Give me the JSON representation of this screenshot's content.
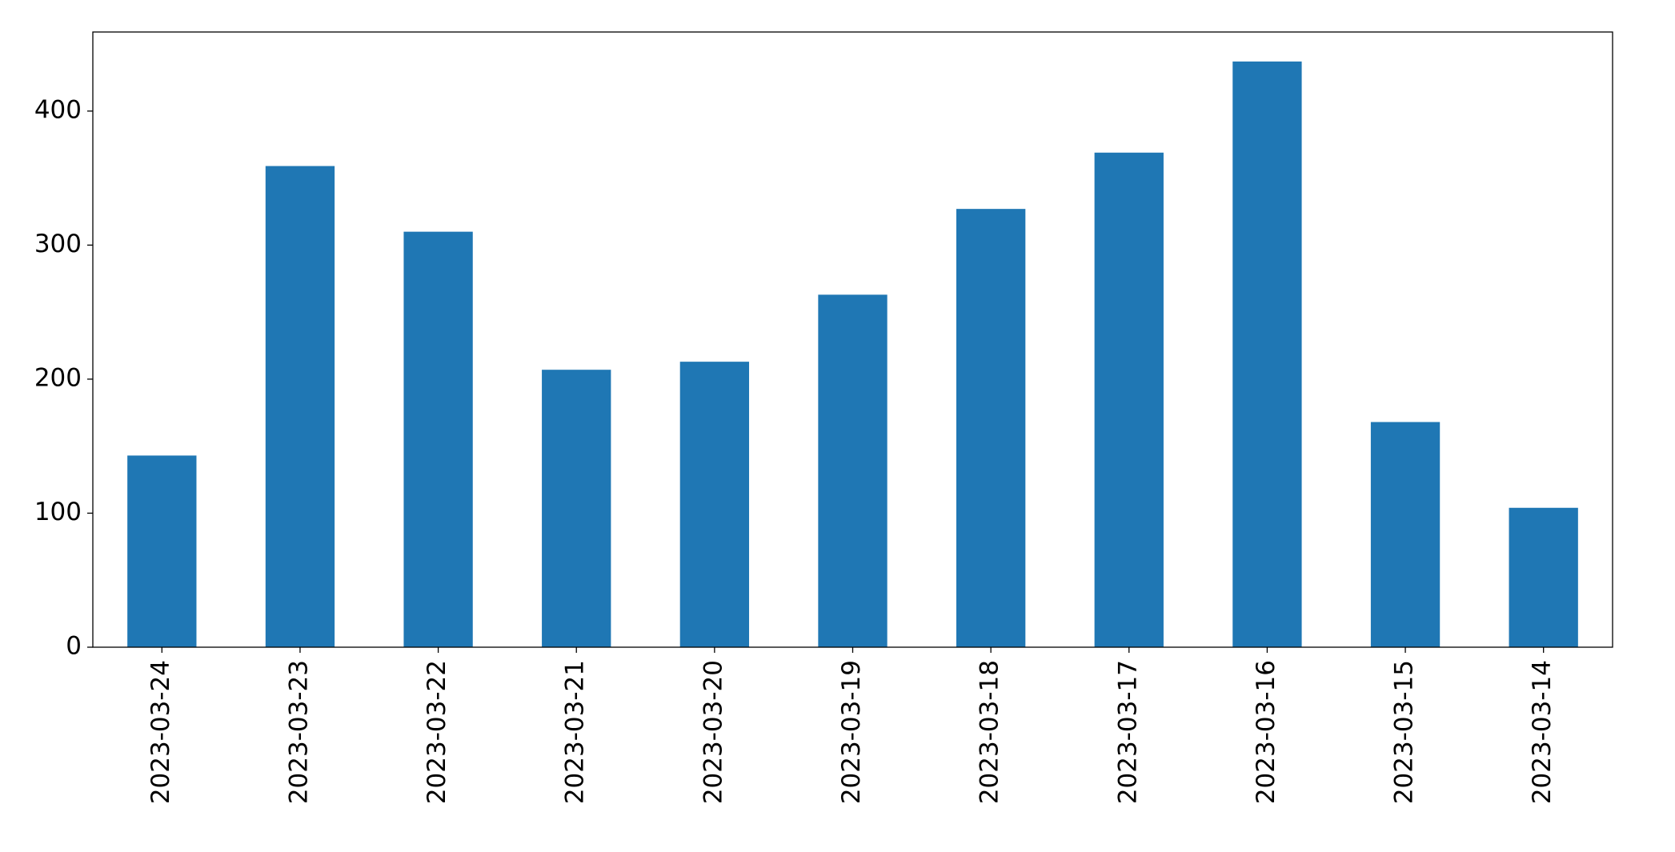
{
  "chart_data": {
    "type": "bar",
    "categories": [
      "2023-03-24",
      "2023-03-23",
      "2023-03-22",
      "2023-03-21",
      "2023-03-20",
      "2023-03-19",
      "2023-03-18",
      "2023-03-17",
      "2023-03-16",
      "2023-03-15",
      "2023-03-14"
    ],
    "values": [
      143,
      359,
      310,
      207,
      213,
      263,
      327,
      369,
      437,
      168,
      104
    ],
    "color": "#1f77b4",
    "ylim": [
      0,
      459
    ],
    "yticks": [
      0,
      100,
      200,
      300,
      400
    ],
    "grid": false
  }
}
